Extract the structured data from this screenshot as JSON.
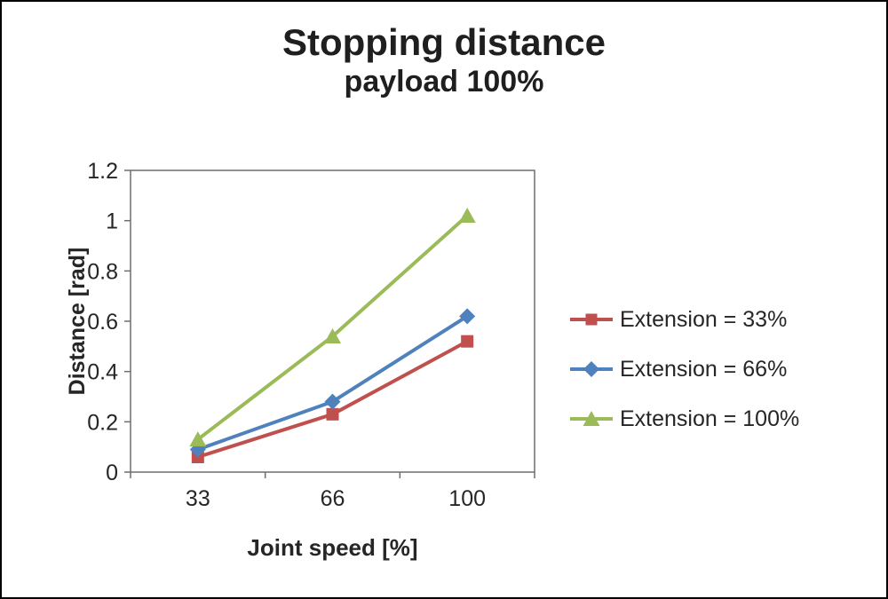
{
  "title": "Stopping distance",
  "subtitle": "payload 100%",
  "chart_data": {
    "type": "line",
    "title": "Stopping distance",
    "subtitle": "payload 100%",
    "xlabel": "Joint speed [%]",
    "ylabel": "Distance [rad]",
    "categories": [
      "33",
      "66",
      "100"
    ],
    "series": [
      {
        "name": "Extension = 33%",
        "color": "#c0504d",
        "marker": "square",
        "values": [
          0.06,
          0.23,
          0.52
        ]
      },
      {
        "name": "Extension = 66%",
        "color": "#4f81bd",
        "marker": "diamond",
        "values": [
          0.09,
          0.28,
          0.62
        ]
      },
      {
        "name": "Extension = 100%",
        "color": "#9bbb59",
        "marker": "triangle",
        "values": [
          0.13,
          0.54,
          1.02
        ]
      }
    ],
    "ylim": [
      0,
      1.2
    ],
    "ytick_step": 0.2,
    "yticks": [
      "0",
      "0.2",
      "0.4",
      "0.6",
      "0.8",
      "1",
      "1.2"
    ],
    "grid": false,
    "legend_position": "right",
    "axis_color": "#6e6e6e"
  }
}
